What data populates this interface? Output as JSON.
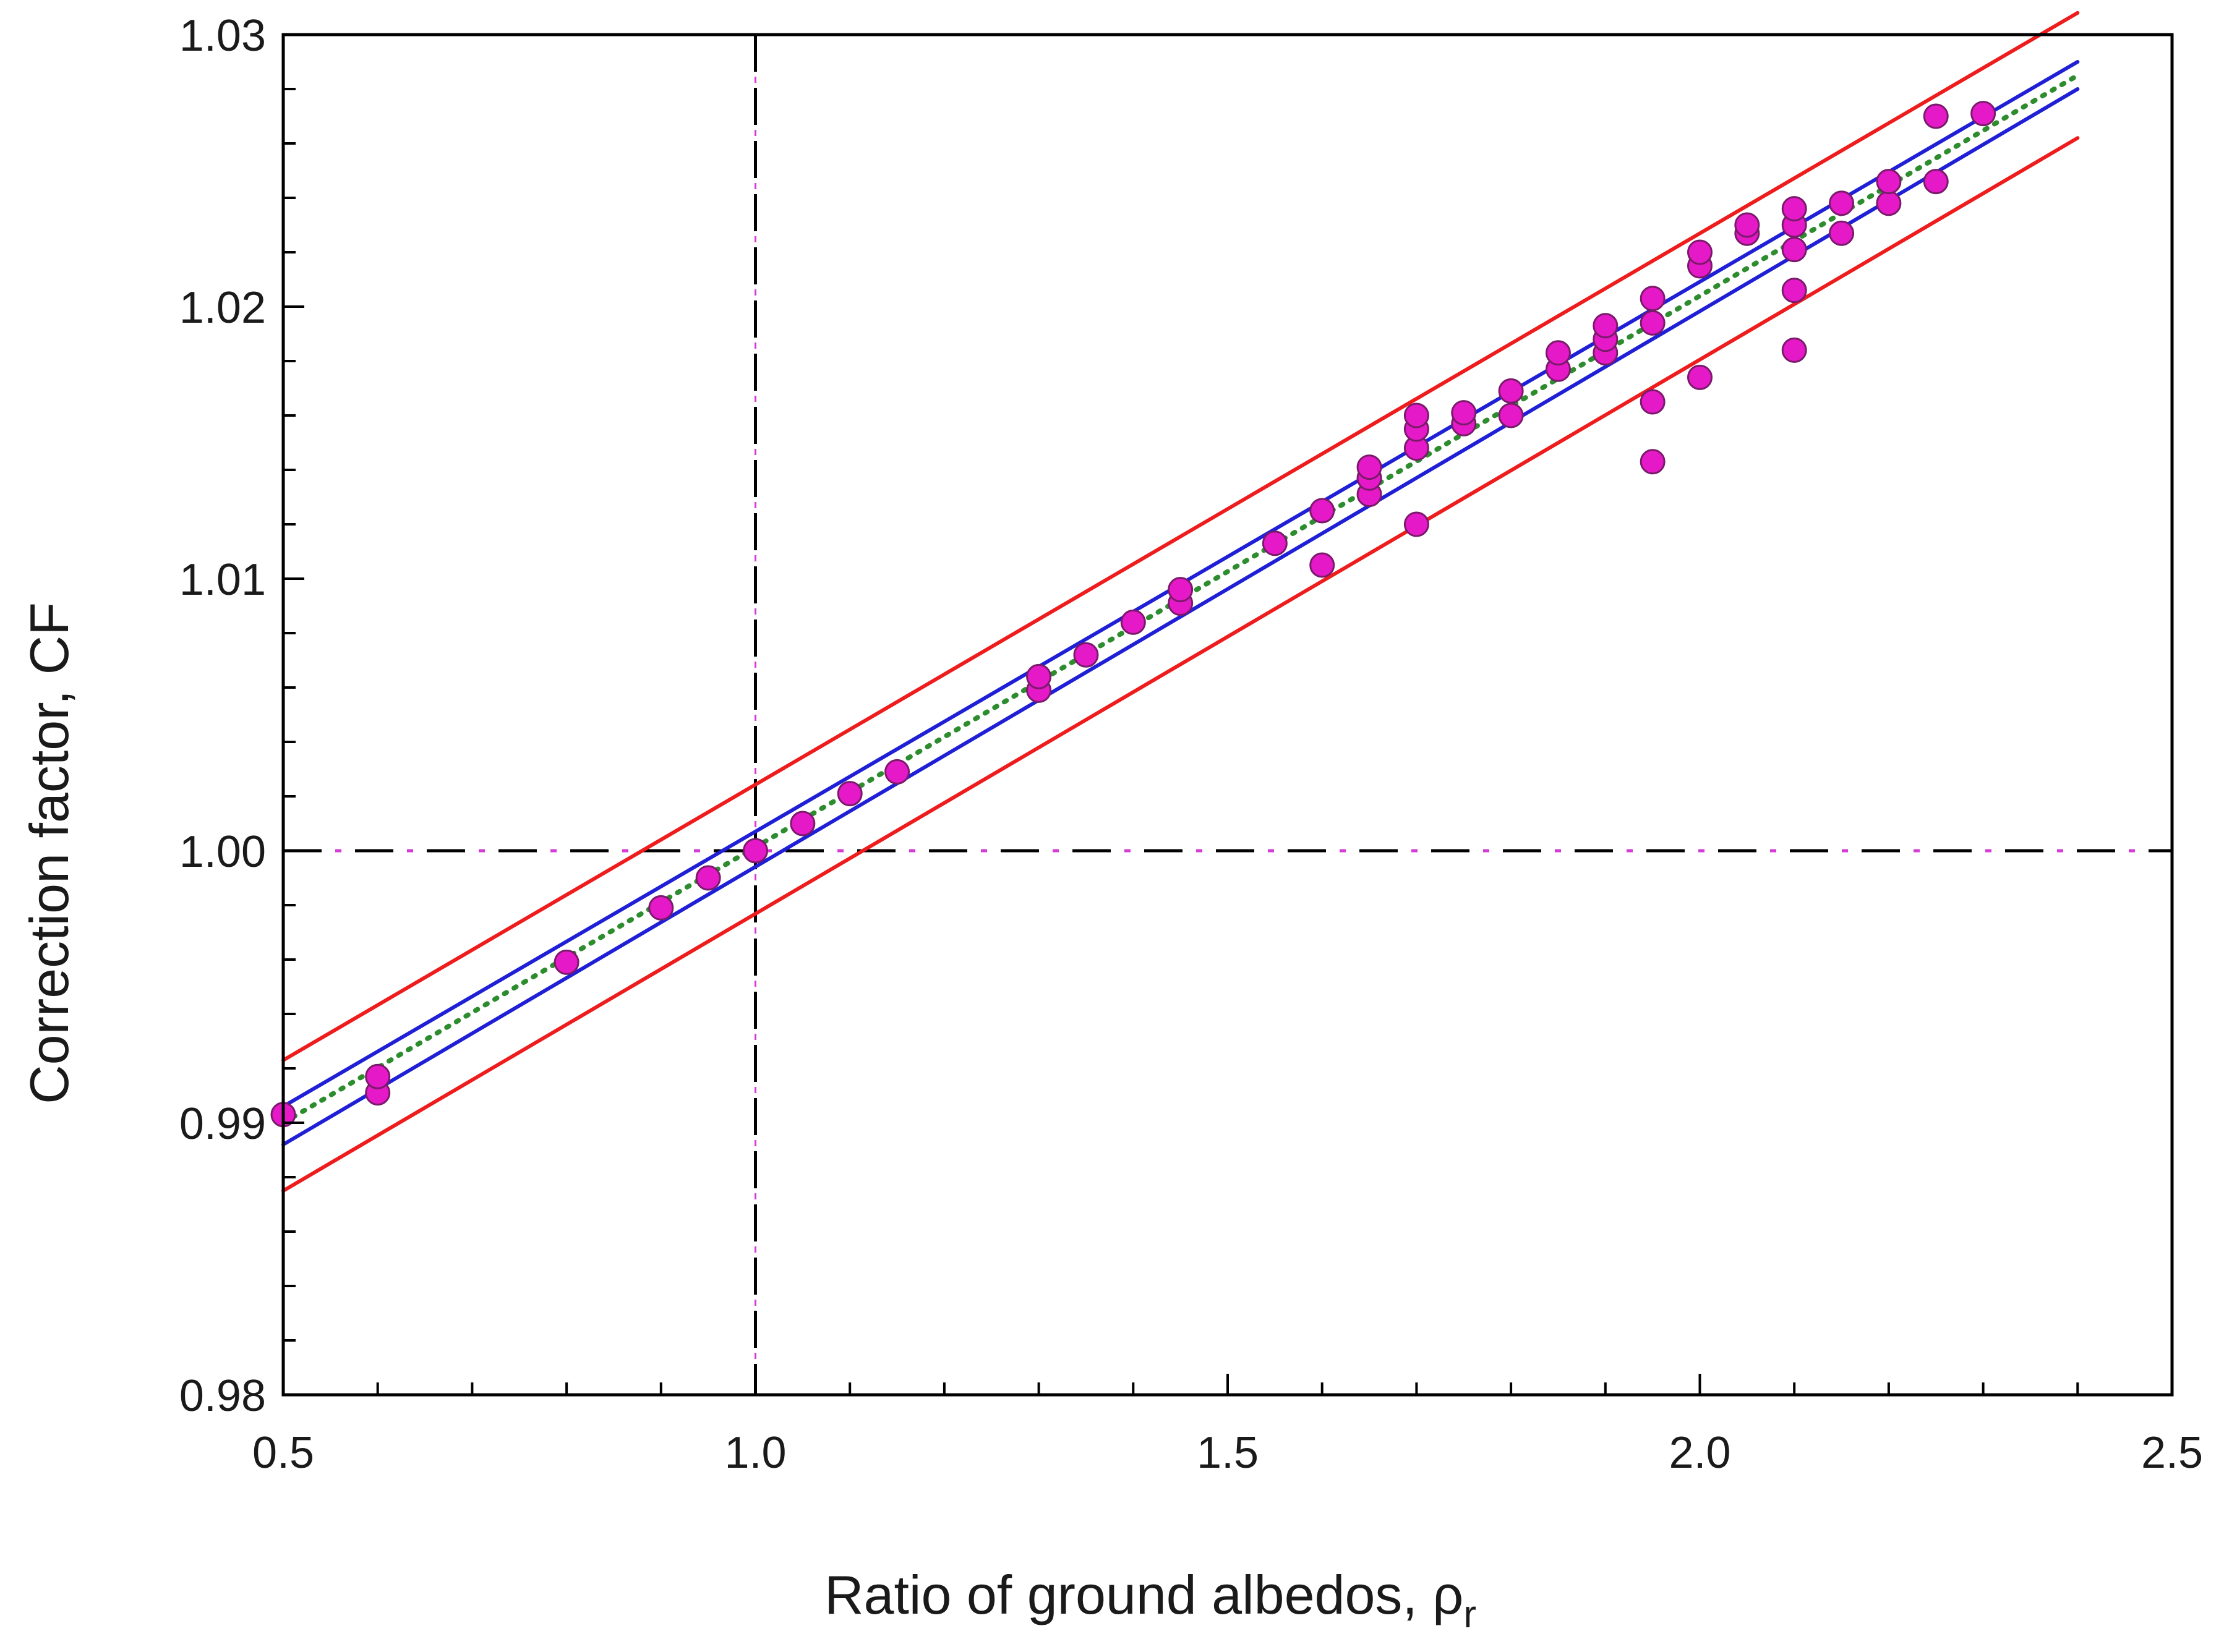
{
  "chart_data": {
    "type": "scatter",
    "title": "",
    "xlabel": "Ratio of ground albedos, ρ",
    "xlabel_subscript": "r",
    "ylabel": "Correction factor, CF",
    "xlim": [
      0.5,
      2.5
    ],
    "ylim": [
      0.98,
      1.03
    ],
    "x_ticks": [
      "0.5",
      "1.0",
      "1.5",
      "2.0",
      "2.5"
    ],
    "y_ticks": [
      "0.98",
      "0.99",
      "1.00",
      "1.01",
      "1.02",
      "1.03"
    ],
    "reference_lines": {
      "vertical_x": 1.0,
      "horizontal_y": 1.0
    },
    "colors": {
      "points": "#e619c8",
      "points_edge": "#7a1a6a",
      "fit": "#2d8c2d",
      "confidence": "#1f1fd6",
      "prediction": "#ee1c1c",
      "reference": "#000000",
      "reference_accent": "#d43cd4"
    },
    "series": [
      {
        "name": "data",
        "kind": "points",
        "x": [
          0.5,
          0.6,
          0.6,
          0.8,
          0.9,
          0.95,
          1.0,
          1.05,
          1.1,
          1.15,
          1.3,
          1.3,
          1.35,
          1.4,
          1.45,
          1.45,
          1.55,
          1.6,
          1.6,
          1.65,
          1.65,
          1.65,
          1.7,
          1.7,
          1.7,
          1.7,
          1.75,
          1.75,
          1.8,
          1.8,
          1.85,
          1.85,
          1.9,
          1.9,
          1.9,
          1.95,
          1.95,
          1.95,
          1.95,
          2.0,
          2.0,
          2.0,
          2.05,
          2.05,
          2.1,
          2.1,
          2.1,
          2.1,
          2.1,
          2.15,
          2.15,
          2.2,
          2.2,
          2.25,
          2.25,
          2.3
        ],
        "y": [
          0.9903,
          0.9911,
          0.9917,
          0.9959,
          0.9979,
          0.999,
          1.0,
          1.001,
          1.0021,
          1.0029,
          1.0059,
          1.0064,
          1.0072,
          1.0084,
          1.0091,
          1.0096,
          1.0113,
          1.0105,
          1.0125,
          1.0131,
          1.0137,
          1.0141,
          1.012,
          1.0148,
          1.0155,
          1.016,
          1.0157,
          1.0161,
          1.016,
          1.0169,
          1.0177,
          1.0183,
          1.0183,
          1.0188,
          1.0193,
          1.0143,
          1.0165,
          1.0194,
          1.0203,
          1.0174,
          1.0215,
          1.022,
          1.0227,
          1.023,
          1.0184,
          1.0206,
          1.0221,
          1.023,
          1.0236,
          1.0227,
          1.0238,
          1.0238,
          1.0246,
          1.0246,
          1.027,
          1.0271
        ]
      },
      {
        "name": "regression fit",
        "kind": "dotted-line",
        "x": [
          0.5,
          2.4
        ],
        "y": [
          0.99,
          1.0285
        ]
      },
      {
        "name": "upper confidence",
        "kind": "line",
        "x": [
          0.5,
          2.4
        ],
        "y": [
          0.9906,
          1.029
        ]
      },
      {
        "name": "lower confidence",
        "kind": "line",
        "x": [
          0.5,
          2.4
        ],
        "y": [
          0.9892,
          1.028
        ]
      },
      {
        "name": "upper prediction",
        "kind": "line",
        "x": [
          0.5,
          2.4
        ],
        "y": [
          0.9923,
          1.0308
        ]
      },
      {
        "name": "lower prediction",
        "kind": "line",
        "x": [
          0.5,
          2.4
        ],
        "y": [
          0.9875,
          1.0262
        ]
      }
    ]
  }
}
